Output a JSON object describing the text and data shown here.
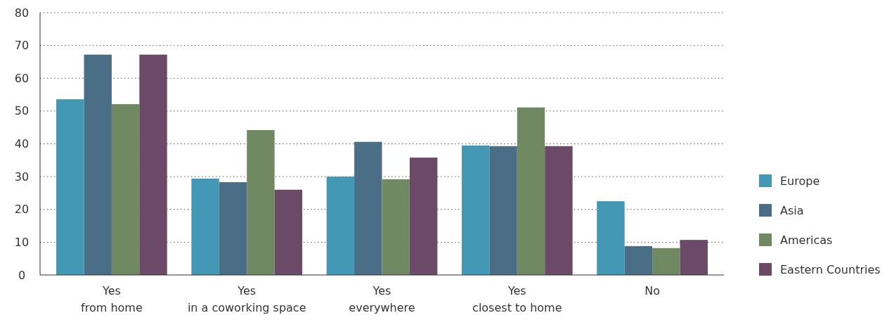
{
  "chart_data": {
    "type": "bar",
    "categories": [
      "Yes\nfrom home",
      "Yes\nin a coworking space",
      "Yes\neverywhere",
      "Yes\nclosest to home",
      "No"
    ],
    "series": [
      {
        "name": "Europe",
        "color": "#4298b5",
        "values": [
          53.6,
          29.4,
          30.0,
          39.5,
          22.5
        ]
      },
      {
        "name": "Asia",
        "color": "#4a6e85",
        "values": [
          67.2,
          28.3,
          40.6,
          39.3,
          8.8
        ]
      },
      {
        "name": "Americas",
        "color": "#718962",
        "values": [
          52.1,
          44.2,
          29.2,
          51.1,
          8.2
        ]
      },
      {
        "name": "Eastern Countries",
        "color": "#6b4a68",
        "values": [
          67.2,
          26.0,
          35.8,
          39.3,
          10.7
        ]
      }
    ],
    "ylim": [
      0,
      80
    ],
    "yticks": [
      0,
      10,
      20,
      30,
      40,
      50,
      60,
      70,
      80
    ],
    "grid": "y",
    "legend": "right"
  }
}
